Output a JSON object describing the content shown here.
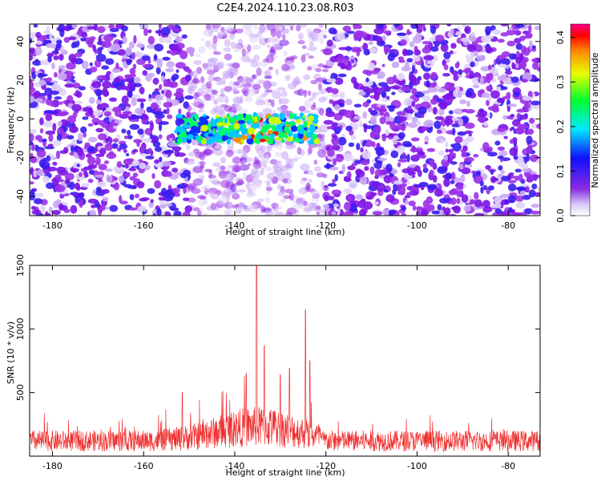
{
  "title": "C2E4.2024.110.23.08.R03",
  "chart_data": [
    {
      "type": "heatmap",
      "xlabel": "Height of straight line (km)",
      "ylabel": "Frequency (Hz)",
      "xlim": [
        -185,
        -73
      ],
      "ylim": [
        -50,
        49
      ],
      "xticks": [
        -180,
        -160,
        -140,
        -120,
        -100,
        -80
      ],
      "yticks": [
        -40,
        -20,
        0,
        20,
        40
      ],
      "colorbar": {
        "label": "Normalized spectral amplitude",
        "range": [
          0.0,
          0.43
        ],
        "ticks": [
          "0.0",
          "0.1",
          "0.2",
          "0.3",
          "0.4"
        ],
        "tick_values": [
          0.0,
          0.1,
          0.2,
          0.3,
          0.4
        ]
      },
      "signal": {
        "height_range_km": [
          -153,
          -122
        ],
        "frequency_center_hz": -5,
        "peak_amplitude": 0.4
      },
      "quiet_band_km": [
        -150,
        -120
      ]
    },
    {
      "type": "line",
      "xlabel": "Height of straight line (km)",
      "ylabel": "SNR (10 * v/v)",
      "xlim": [
        -185,
        -73
      ],
      "ylim": [
        0,
        1500
      ],
      "xticks": [
        -180,
        -160,
        -140,
        -120,
        -100,
        -80
      ],
      "yticks": [
        500,
        1000,
        1500
      ],
      "color": "#f03030",
      "baseline_snr": 150,
      "peaks": [
        {
          "x": -135.2,
          "y": 1500
        },
        {
          "x": -133.5,
          "y": 870
        },
        {
          "x": -130.0,
          "y": 640
        },
        {
          "x": -128.0,
          "y": 690
        },
        {
          "x": -124.5,
          "y": 1150
        },
        {
          "x": -123.5,
          "y": 750
        },
        {
          "x": -137.5,
          "y": 650
        },
        {
          "x": -151.5,
          "y": 500
        }
      ]
    }
  ]
}
